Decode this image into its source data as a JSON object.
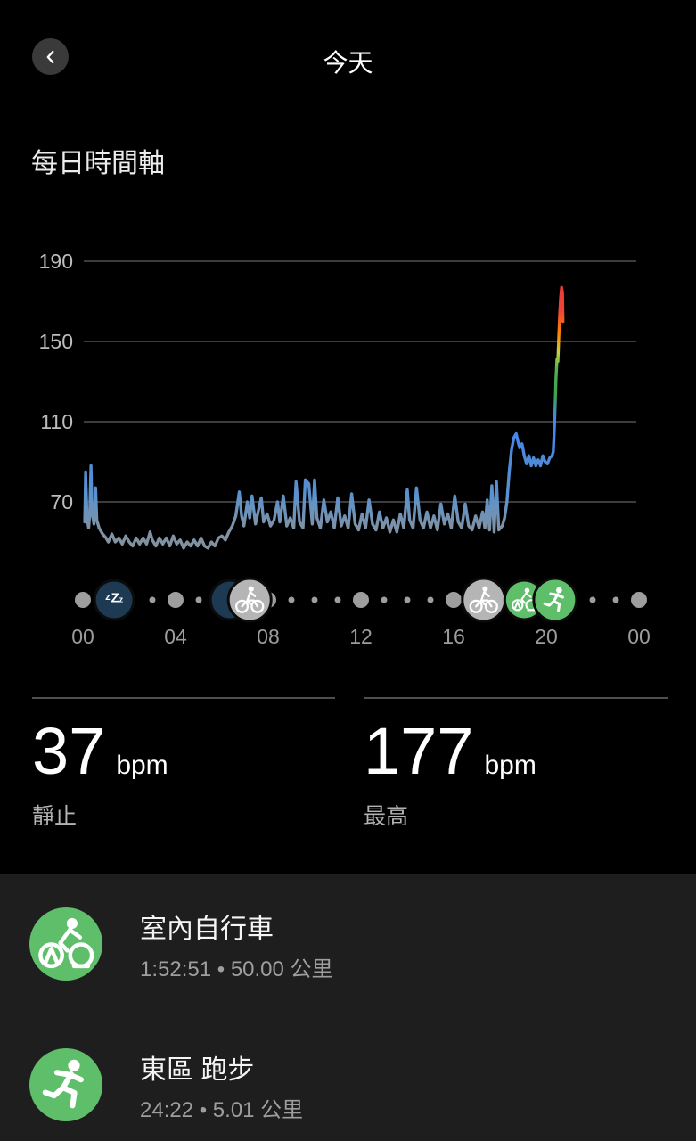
{
  "header": {
    "title": "今天"
  },
  "section": {
    "title": "每日時間軸"
  },
  "chart_data": {
    "type": "line",
    "title": "每日時間軸",
    "ylabel": "bpm",
    "ylim": [
      40,
      200
    ],
    "xlim_hours": [
      0,
      24
    ],
    "grid": "horizontal",
    "y_ticks": [
      190,
      150,
      110,
      70
    ],
    "x_ticks": [
      "00",
      "04",
      "08",
      "12",
      "16",
      "20",
      "00"
    ],
    "x_tick_hours": [
      0,
      4,
      8,
      12,
      16,
      20,
      24
    ],
    "legend": "none",
    "series": [
      {
        "name": "heart_rate_bpm",
        "points": [
          [
            0.08,
            60
          ],
          [
            0.12,
            85
          ],
          [
            0.18,
            62
          ],
          [
            0.25,
            57
          ],
          [
            0.3,
            65
          ],
          [
            0.35,
            88
          ],
          [
            0.4,
            64
          ],
          [
            0.48,
            59
          ],
          [
            0.55,
            77
          ],
          [
            0.6,
            61
          ],
          [
            0.7,
            57
          ],
          [
            0.85,
            54
          ],
          [
            1.0,
            52
          ],
          [
            1.1,
            50
          ],
          [
            1.25,
            54
          ],
          [
            1.4,
            50
          ],
          [
            1.55,
            52
          ],
          [
            1.7,
            49
          ],
          [
            1.85,
            53
          ],
          [
            2.0,
            50
          ],
          [
            2.15,
            48
          ],
          [
            2.3,
            52
          ],
          [
            2.45,
            49
          ],
          [
            2.6,
            52
          ],
          [
            2.75,
            49
          ],
          [
            2.9,
            55
          ],
          [
            3.0,
            51
          ],
          [
            3.15,
            48
          ],
          [
            3.3,
            52
          ],
          [
            3.45,
            49
          ],
          [
            3.6,
            52
          ],
          [
            3.75,
            48
          ],
          [
            3.9,
            53
          ],
          [
            4.05,
            49
          ],
          [
            4.2,
            51
          ],
          [
            4.35,
            47
          ],
          [
            4.5,
            50
          ],
          [
            4.65,
            48
          ],
          [
            4.8,
            51
          ],
          [
            4.95,
            48
          ],
          [
            5.1,
            52
          ],
          [
            5.25,
            48
          ],
          [
            5.4,
            47
          ],
          [
            5.55,
            50
          ],
          [
            5.7,
            48
          ],
          [
            5.85,
            52
          ],
          [
            6.0,
            53
          ],
          [
            6.15,
            51
          ],
          [
            6.3,
            55
          ],
          [
            6.45,
            58
          ],
          [
            6.6,
            63
          ],
          [
            6.75,
            75
          ],
          [
            6.85,
            63
          ],
          [
            6.95,
            58
          ],
          [
            7.1,
            70
          ],
          [
            7.2,
            62
          ],
          [
            7.3,
            73
          ],
          [
            7.45,
            59
          ],
          [
            7.6,
            67
          ],
          [
            7.7,
            72
          ],
          [
            7.8,
            60
          ],
          [
            7.95,
            64
          ],
          [
            8.1,
            58
          ],
          [
            8.25,
            61
          ],
          [
            8.4,
            70
          ],
          [
            8.5,
            60
          ],
          [
            8.65,
            73
          ],
          [
            8.8,
            58
          ],
          [
            8.95,
            62
          ],
          [
            9.1,
            57
          ],
          [
            9.2,
            80
          ],
          [
            9.35,
            60
          ],
          [
            9.5,
            57
          ],
          [
            9.6,
            81
          ],
          [
            9.75,
            79
          ],
          [
            9.9,
            59
          ],
          [
            10.0,
            81
          ],
          [
            10.1,
            62
          ],
          [
            10.25,
            57
          ],
          [
            10.4,
            71
          ],
          [
            10.55,
            60
          ],
          [
            10.7,
            65
          ],
          [
            10.85,
            57
          ],
          [
            11.0,
            72
          ],
          [
            11.15,
            58
          ],
          [
            11.3,
            63
          ],
          [
            11.45,
            57
          ],
          [
            11.6,
            74
          ],
          [
            11.75,
            59
          ],
          [
            11.9,
            56
          ],
          [
            12.05,
            64
          ],
          [
            12.2,
            57
          ],
          [
            12.35,
            71
          ],
          [
            12.5,
            59
          ],
          [
            12.65,
            56
          ],
          [
            12.8,
            65
          ],
          [
            12.95,
            57
          ],
          [
            13.1,
            62
          ],
          [
            13.25,
            55
          ],
          [
            13.4,
            61
          ],
          [
            13.55,
            55
          ],
          [
            13.7,
            64
          ],
          [
            13.85,
            57
          ],
          [
            14.0,
            76
          ],
          [
            14.1,
            61
          ],
          [
            14.25,
            57
          ],
          [
            14.4,
            77
          ],
          [
            14.55,
            61
          ],
          [
            14.7,
            57
          ],
          [
            14.85,
            65
          ],
          [
            15.0,
            57
          ],
          [
            15.15,
            63
          ],
          [
            15.3,
            56
          ],
          [
            15.45,
            69
          ],
          [
            15.6,
            59
          ],
          [
            15.75,
            64
          ],
          [
            15.9,
            57
          ],
          [
            16.05,
            73
          ],
          [
            16.2,
            60
          ],
          [
            16.35,
            57
          ],
          [
            16.5,
            69
          ],
          [
            16.65,
            58
          ],
          [
            16.8,
            56
          ],
          [
            16.95,
            63
          ],
          [
            17.1,
            57
          ],
          [
            17.25,
            65
          ],
          [
            17.35,
            57
          ],
          [
            17.45,
            71
          ],
          [
            17.55,
            56
          ],
          [
            17.65,
            78
          ],
          [
            17.75,
            55
          ],
          [
            17.85,
            80
          ],
          [
            17.95,
            56
          ],
          [
            18.1,
            58
          ],
          [
            18.2,
            62
          ],
          [
            18.3,
            70
          ],
          [
            18.4,
            85
          ],
          [
            18.5,
            96
          ],
          [
            18.6,
            102
          ],
          [
            18.7,
            104
          ],
          [
            18.78,
            100
          ],
          [
            18.85,
            97
          ],
          [
            18.95,
            99
          ],
          [
            19.05,
            93
          ],
          [
            19.15,
            89
          ],
          [
            19.25,
            93
          ],
          [
            19.35,
            88
          ],
          [
            19.45,
            92
          ],
          [
            19.55,
            88
          ],
          [
            19.65,
            91
          ],
          [
            19.75,
            88
          ],
          [
            19.85,
            93
          ],
          [
            19.95,
            90
          ],
          [
            20.05,
            89
          ],
          [
            20.15,
            92
          ],
          [
            20.25,
            93
          ],
          [
            20.3,
            95
          ],
          [
            20.34,
            104
          ],
          [
            20.38,
            118
          ],
          [
            20.42,
            132
          ],
          [
            20.46,
            141
          ],
          [
            20.5,
            140
          ],
          [
            20.54,
            152
          ],
          [
            20.58,
            164
          ],
          [
            20.62,
            172
          ],
          [
            20.66,
            177
          ],
          [
            20.7,
            174
          ],
          [
            20.72,
            160
          ]
        ]
      }
    ],
    "zone_gradient_stops": [
      [
        0.0,
        "#e53935"
      ],
      [
        0.13,
        "#ef4437"
      ],
      [
        0.22,
        "#fb8c00"
      ],
      [
        0.28,
        "#c5d142"
      ],
      [
        0.34,
        "#4db354"
      ],
      [
        0.43,
        "#3fa24b"
      ],
      [
        0.53,
        "#4285f4"
      ],
      [
        0.69,
        "#4f8bd6"
      ],
      [
        0.8,
        "#5d92cc"
      ],
      [
        0.91,
        "#7e92a6"
      ],
      [
        1.0,
        "#83919e"
      ]
    ],
    "timeline": {
      "small_dot_hours": [
        3,
        5,
        9,
        10,
        11,
        13,
        14,
        15,
        22,
        23
      ],
      "medium_dot_hours": [
        0,
        4,
        8,
        12,
        16,
        20,
        24
      ],
      "badges": [
        {
          "name": "sleep-badge-partial",
          "hour": 6.35,
          "radius": 22,
          "color": "#1d3a52",
          "icon": null,
          "label": null
        },
        {
          "name": "cycling-badge-morning",
          "hour": 7.2,
          "radius": 24,
          "color": "#b5b5b5",
          "icon": "bike",
          "label": null
        },
        {
          "name": "sleep-badge",
          "hour": 1.35,
          "radius": 22,
          "color": "#1d3a52",
          "icon": "zzz",
          "label": "zZz"
        },
        {
          "name": "cycling-badge-evening",
          "hour": 17.3,
          "radius": 24,
          "color": "#b5b5b5",
          "icon": "bike",
          "label": null
        },
        {
          "name": "indoor-cycling-badge",
          "hour": 19.05,
          "radius": 22,
          "color": "#5fbe6a",
          "icon": "spin",
          "label": null
        },
        {
          "name": "running-badge",
          "hour": 20.38,
          "radius": 24,
          "color": "#5fbe6a",
          "icon": "run",
          "label": null
        }
      ]
    }
  },
  "stats": [
    {
      "value": "37",
      "unit": "bpm",
      "label": "靜止"
    },
    {
      "value": "177",
      "unit": "bpm",
      "label": "最高"
    }
  ],
  "activities": [
    {
      "title": "室內自行車",
      "subtitle": "1:52:51 • 50.00 公里",
      "icon": "spin",
      "color": "#5fbe6a"
    },
    {
      "title": "東區 跑步",
      "subtitle": "24:22 • 5.01 公里",
      "icon": "run",
      "color": "#5fbe6a"
    }
  ],
  "colors": {
    "background": "#000000",
    "panel": "#1e1e1e",
    "accent_green": "#5fbe6a",
    "badge_gray": "#b5b5b5",
    "sleep_navy": "#1d3a52",
    "gridline": "#3c3c3c",
    "tick_text": "#9c9c9c"
  }
}
